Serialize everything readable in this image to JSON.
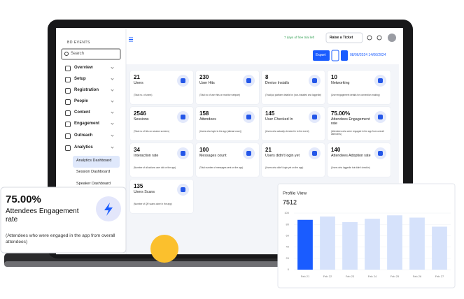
{
  "header": {
    "logo": "BD EVENTS",
    "search": "Search",
    "trial": "7 days of free trial left",
    "ticket": "Raise a Ticket",
    "export": "Export",
    "date_range": "08/06/2024 14/06/2024"
  },
  "sidebar": {
    "items": [
      "Overview",
      "Setup",
      "Registration",
      "People",
      "Content",
      "Engagement",
      "Outreach",
      "Analytics"
    ],
    "subitems": [
      "Analytics Dashboard",
      "Session Dashboard",
      "Speaker Dashboard"
    ]
  },
  "cards": [
    {
      "value": "21",
      "title": "Users",
      "note": "(Total no. of users)"
    },
    {
      "value": "230",
      "title": "User Hits",
      "note": "(Total no of user hits on monitor webpart)"
    },
    {
      "value": "8",
      "title": "Device Installs",
      "note": "(Track(a) platform details for (non-installed and loggedin)"
    },
    {
      "value": "10",
      "title": "Networking",
      "note": "(User engagement details for connection making)"
    },
    {
      "value": "2546",
      "title": "Sessions",
      "note": "(Total no of hits on session screens)"
    },
    {
      "value": "158",
      "title": "Attendees",
      "note": "(Users who login to the app (atleast once))"
    },
    {
      "value": "145",
      "title": "User Checked In",
      "note": "(Users who actually checked in to the event)"
    },
    {
      "value": "75.00%",
      "title": "Attendees Engagement rate",
      "note": "(Attendees who were engaged in the app from overall attendees)"
    },
    {
      "value": "34",
      "title": "Interaction rate",
      "note": "(Number of all actions user did on the app)"
    },
    {
      "value": "100",
      "title": "Messages count",
      "note": "(Total number of messages sent on the app)"
    },
    {
      "value": "21",
      "title": "Users didn't login yet",
      "note": "(Users who didn't login yet on the app)"
    },
    {
      "value": "140",
      "title": "Attendees Adoption rate",
      "note": "(Users who loggedin but didn't checkin)"
    },
    {
      "value": "135",
      "title": "Users Scans",
      "note": "(Number of QR scans done in the app)"
    }
  ],
  "popup": {
    "value": "75.00%",
    "title": "Attendees Engagement rate",
    "note": "(Attendees who were engaged in the app from overall attendees)"
  },
  "chart_data": {
    "type": "bar",
    "title": "Profile View",
    "subtitle": "7512",
    "categories": [
      "Feb 21",
      "Feb 22",
      "Feb 23",
      "Feb 24",
      "Feb 25",
      "Feb 26",
      "Feb 27"
    ],
    "values": [
      88,
      94,
      84,
      90,
      96,
      92,
      76
    ],
    "colors": [
      "#1a5cff",
      "#d6e2fb",
      "#d6e2fb",
      "#d6e2fb",
      "#d6e2fb",
      "#d6e2fb",
      "#d6e2fb"
    ],
    "ylim": [
      0,
      100
    ],
    "yticks": [
      0,
      20,
      40,
      60,
      80,
      100
    ],
    "grid": true
  }
}
